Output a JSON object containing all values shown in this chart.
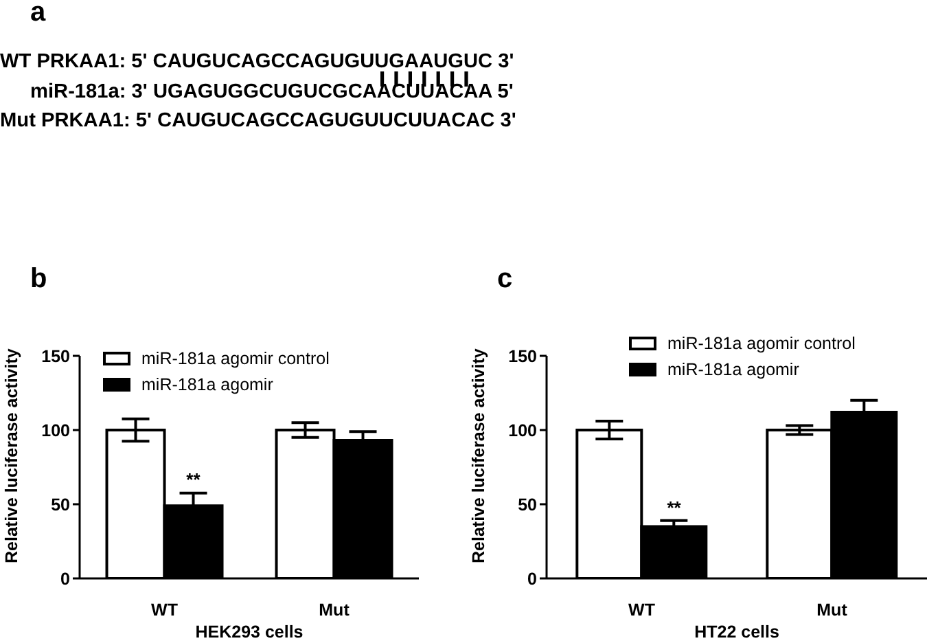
{
  "chart_data": [
    {
      "type": "other",
      "title": "a",
      "annotations": [
        "WT PRKAA1: 5' CAUGUCAGCCAGUGUUGAAUGUC 3'",
        "miR-181a: 3' UGAGUGGCUGUCGCAACUUACAA 5'",
        "Mut PRKAA1: 5' CAUGUCAGCCAGUGUUCUUACAC 3'"
      ]
    },
    {
      "type": "bar",
      "title": "b",
      "xlabel": "HEK293 cells",
      "ylabel": "Relative luciferase activity",
      "categories": [
        "WT",
        "Mut"
      ],
      "series": [
        {
          "name": "miR-181a agomir control",
          "color": "#ffffff",
          "values": [
            100,
            100
          ],
          "errors": [
            7.5,
            5
          ]
        },
        {
          "name": "miR-181a agomir",
          "color": "#000000",
          "values": [
            49,
            93
          ],
          "errors": [
            8.5,
            6
          ]
        }
      ],
      "ylim": [
        0,
        150
      ],
      "yticks": [
        0,
        50,
        100,
        150
      ],
      "grid": false,
      "legend": "top left",
      "annotations": [
        {
          "text": "**",
          "x": "WT",
          "y": 58
        }
      ]
    },
    {
      "type": "bar",
      "title": "c",
      "xlabel": "HT22 cells",
      "ylabel": "Relative luciferase activity",
      "categories": [
        "WT",
        "Mut"
      ],
      "series": [
        {
          "name": "miR-181a agomir control",
          "color": "#ffffff",
          "values": [
            100,
            100
          ],
          "errors": [
            6,
            3
          ]
        },
        {
          "name": "miR-181a agomir",
          "color": "#000000",
          "values": [
            35,
            112
          ],
          "errors": [
            4,
            8
          ]
        }
      ],
      "ylim": [
        0,
        150
      ],
      "yticks": [
        0,
        50,
        100,
        150
      ],
      "grid": false,
      "legend": "top left",
      "annotations": [
        {
          "text": "**",
          "x": "WT",
          "y": 39
        }
      ]
    }
  ]
}
